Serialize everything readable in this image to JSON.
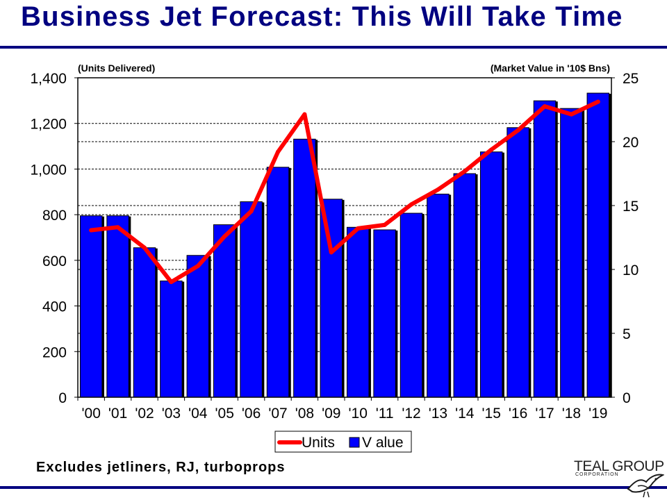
{
  "title": "Business Jet Forecast: This Will Take Time",
  "footnote": "Excludes jetliners, RJ, turboprops",
  "logo": {
    "name": "TEAL GROUP",
    "sub": "CORPORATION",
    "icon": "teal-bird-icon"
  },
  "colors": {
    "title": "#000080",
    "bars": "#0000FF",
    "line": "#FF0000"
  },
  "chart_data": {
    "type": "bar",
    "categories": [
      "'00",
      "'01",
      "'02",
      "'03",
      "'04",
      "'05",
      "'06",
      "'07",
      "'08",
      "'09",
      "'10",
      "'11",
      "'12",
      "'13",
      "'14",
      "'15",
      "'16",
      "'17",
      "'18",
      "'19"
    ],
    "left_axis_label": "(Units Delivered)",
    "right_axis_label": "(Market Value in '10$ Bns)",
    "ylim_left": [
      0,
      1400
    ],
    "yticks_left": [
      "0",
      "200",
      "400",
      "600",
      "800",
      "1,000",
      "1,200",
      "1,400"
    ],
    "ylim_right": [
      0,
      25
    ],
    "yticks_right": [
      "0",
      "5",
      "10",
      "15",
      "20",
      "25"
    ],
    "grid": true,
    "legend_position": "bottom",
    "series": [
      {
        "name": "Units",
        "type": "line",
        "axis": "left",
        "values": [
          732,
          745,
          655,
          505,
          575,
          705,
          815,
          1075,
          1240,
          635,
          740,
          755,
          845,
          910,
          990,
          1085,
          1170,
          1275,
          1240,
          1295
        ]
      },
      {
        "name": "Value",
        "label": "V alue",
        "type": "bar",
        "axis": "right",
        "values": [
          14.2,
          14.2,
          11.7,
          9.1,
          11.1,
          13.5,
          15.3,
          18.0,
          20.2,
          15.5,
          13.3,
          13.1,
          14.4,
          15.9,
          17.5,
          19.2,
          21.1,
          23.2,
          22.6,
          23.8
        ]
      }
    ]
  }
}
